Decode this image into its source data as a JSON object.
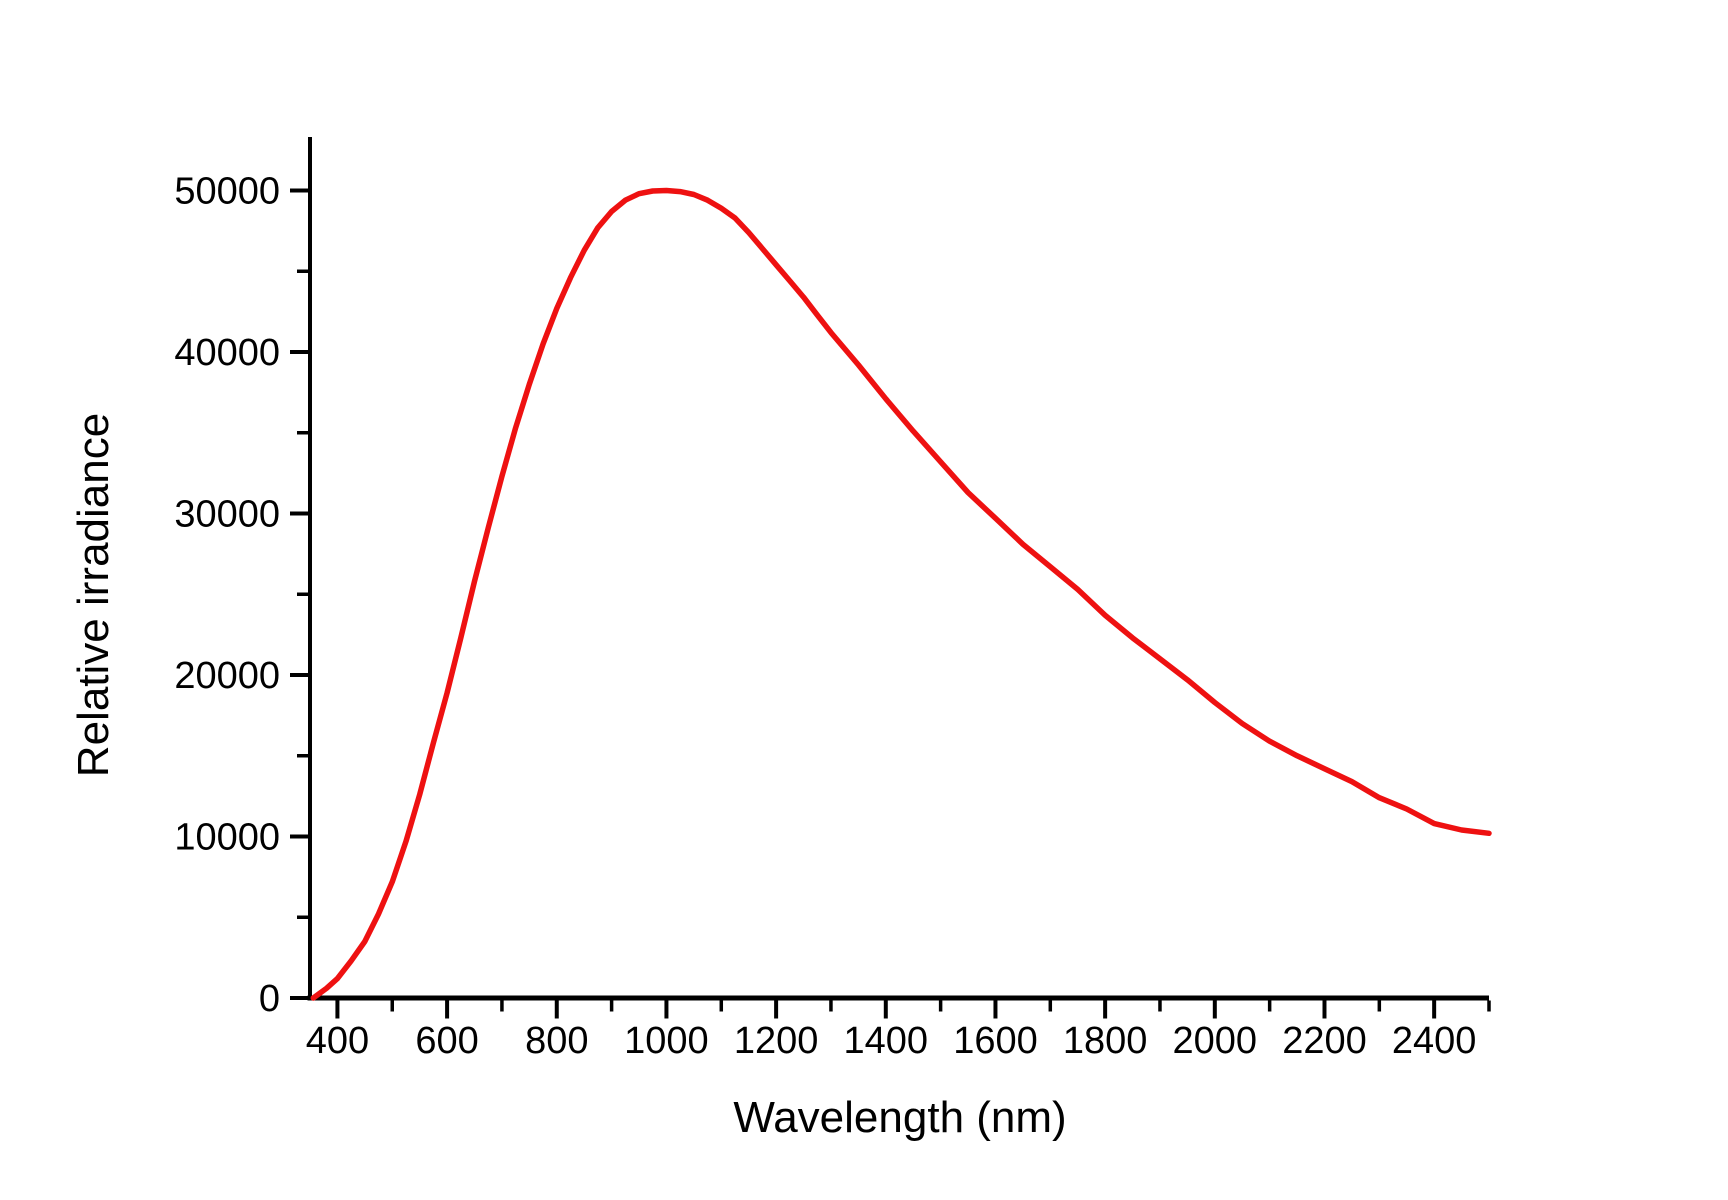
{
  "figure": {
    "background": "#ffffff"
  },
  "chart_data": {
    "type": "line",
    "title": "",
    "xlabel": "Wavelength (nm)",
    "ylabel": "Relative irradiance",
    "xlim": [
      350,
      2500
    ],
    "ylim": [
      0,
      53300
    ],
    "grid": false,
    "legend": null,
    "axis_color": "#000000",
    "x_major_ticks": [
      400,
      600,
      800,
      1000,
      1200,
      1400,
      1600,
      1800,
      2000,
      2200,
      2400
    ],
    "x_minor_ticks": [
      500,
      700,
      900,
      1100,
      1300,
      1500,
      1700,
      1900,
      2100,
      2300,
      2500
    ],
    "y_major_ticks": [
      0,
      10000,
      20000,
      30000,
      40000,
      50000
    ],
    "y_minor_ticks": [
      5000,
      15000,
      25000,
      35000,
      45000
    ],
    "series": [
      {
        "name": "Relative irradiance",
        "color": "#ee1111",
        "x": [
          356,
          380,
          400,
          425,
          450,
          475,
          500,
          525,
          550,
          575,
          600,
          625,
          650,
          675,
          700,
          725,
          750,
          775,
          800,
          825,
          850,
          875,
          900,
          925,
          950,
          975,
          1000,
          1025,
          1050,
          1075,
          1100,
          1125,
          1150,
          1175,
          1200,
          1225,
          1250,
          1275,
          1300,
          1350,
          1400,
          1450,
          1500,
          1550,
          1600,
          1650,
          1700,
          1750,
          1800,
          1850,
          1900,
          1950,
          2000,
          2050,
          2100,
          2150,
          2200,
          2250,
          2300,
          2350,
          2400,
          2450,
          2500
        ],
        "y": [
          0,
          600,
          1200,
          2300,
          3500,
          5200,
          7200,
          9700,
          12600,
          15800,
          18900,
          22300,
          25800,
          29100,
          32300,
          35300,
          38000,
          40500,
          42700,
          44600,
          46300,
          47700,
          48700,
          49400,
          49800,
          49970,
          50000,
          49930,
          49750,
          49400,
          48900,
          48300,
          47400,
          46400,
          45400,
          44400,
          43400,
          42300,
          41200,
          39200,
          37100,
          35100,
          33200,
          31300,
          29700,
          28100,
          26700,
          25300,
          23700,
          22300,
          21000,
          19700,
          18300,
          17000,
          15900,
          15000,
          14200,
          13400,
          12400,
          11700,
          10800,
          10400,
          10200
        ]
      }
    ]
  }
}
